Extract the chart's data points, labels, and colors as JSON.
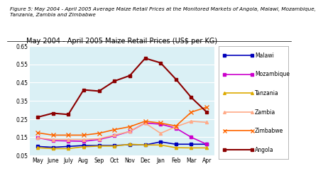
{
  "title": "May 2004 - April 2005 Maize Retail Prices (US$ per KG)",
  "figure_label": "Figure 5: May 2004 - April 2005 Average Maize Retail Prices at the Monitored Markets of Angola, Malawi, Mozambique,\nTanzania, Zambia and Zimbabwe",
  "months": [
    "May",
    "June",
    "July",
    "Aug",
    "Sep",
    "Oct",
    "Nov",
    "Dec",
    "Jan",
    "Feb",
    "Mar",
    "Apr"
  ],
  "ylim": [
    0.05,
    0.65
  ],
  "yticks": [
    0.05,
    0.15,
    0.25,
    0.35,
    0.45,
    0.55,
    0.65
  ],
  "series": {
    "Malawi": {
      "color": "#0000BB",
      "marker": "s",
      "markersize": 3,
      "linewidth": 1.2,
      "values": [
        0.1,
        0.095,
        0.1,
        0.105,
        0.105,
        0.105,
        0.11,
        0.108,
        0.125,
        0.112,
        0.112,
        0.112
      ]
    },
    "Mozambique": {
      "color": "#CC00CC",
      "marker": "s",
      "markersize": 3,
      "linewidth": 1.2,
      "values": [
        0.148,
        0.132,
        0.13,
        0.128,
        0.138,
        0.158,
        0.182,
        0.228,
        0.222,
        0.2,
        0.15,
        0.112
      ]
    },
    "Tanzania": {
      "color": "#DDAA00",
      "marker": "^",
      "markersize": 3,
      "linewidth": 1.2,
      "values": [
        0.093,
        0.088,
        0.088,
        0.098,
        0.102,
        0.102,
        0.112,
        0.108,
        0.108,
        0.093,
        0.092,
        0.092
      ]
    },
    "Zambia": {
      "color": "#FFAA88",
      "marker": "^",
      "markersize": 3,
      "linewidth": 1.2,
      "values": [
        0.148,
        0.138,
        0.138,
        0.138,
        0.142,
        0.162,
        0.182,
        0.228,
        0.172,
        0.208,
        0.238,
        0.232
      ]
    },
    "Zimbabwe": {
      "color": "#FF6600",
      "marker": "x",
      "markersize": 4,
      "linewidth": 1.2,
      "values": [
        0.175,
        0.162,
        0.162,
        0.162,
        0.172,
        0.192,
        0.208,
        0.238,
        0.228,
        0.212,
        0.288,
        0.315
      ]
    },
    "Angola": {
      "color": "#8B0000",
      "marker": "s",
      "markersize": 3,
      "linewidth": 1.5,
      "values": [
        0.26,
        0.282,
        0.275,
        0.41,
        0.403,
        0.458,
        0.488,
        0.583,
        0.558,
        0.468,
        0.368,
        0.288
      ]
    }
  },
  "bg_color": "#DAF0F5",
  "fig_bg_color": "#FFFFFF",
  "legend_order": [
    "Malawi",
    "Mozambique",
    "Tanzania",
    "Zambia",
    "Zimbabwe",
    "Angola"
  ]
}
